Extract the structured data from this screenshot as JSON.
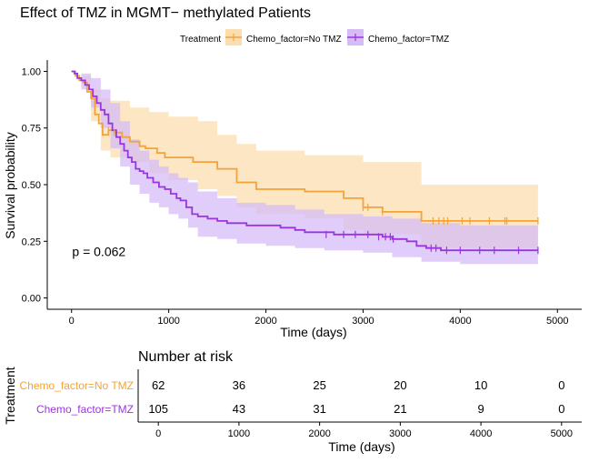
{
  "chart_data": [
    {
      "type": "line",
      "title": "Effect of TMZ in MGMT− methylated Patients",
      "xlabel": "Time (days)",
      "ylabel": "Survival probability",
      "xlim": [
        -250,
        5250
      ],
      "ylim": [
        -0.05,
        1.05
      ],
      "xticks": [
        0,
        1000,
        2000,
        3000,
        4000,
        5000
      ],
      "yticks": [
        0.0,
        0.25,
        0.5,
        0.75,
        1.0
      ],
      "ytick_labels": [
        "0.00",
        "0.25",
        "0.50",
        "0.75",
        "1.00"
      ],
      "grid": false,
      "legend": {
        "title": "Treatment",
        "placement": "top",
        "entries": [
          "Chemo_factor=No TMZ",
          "Chemo_factor=TMZ"
        ]
      },
      "annotation": "p = 0.062",
      "annotation_at": [
        100,
        0.2
      ],
      "series": [
        {
          "name": "Chemo_factor=No TMZ",
          "color": "#F2A33A",
          "band_color": "#FBDDB0",
          "steps": [
            [
              0,
              1.0
            ],
            [
              40,
              0.98
            ],
            [
              80,
              0.96
            ],
            [
              120,
              0.95
            ],
            [
              160,
              0.91
            ],
            [
              200,
              0.88
            ],
            [
              240,
              0.81
            ],
            [
              280,
              0.77
            ],
            [
              320,
              0.72
            ],
            [
              380,
              0.74
            ],
            [
              440,
              0.73
            ],
            [
              520,
              0.71
            ],
            [
              600,
              0.69
            ],
            [
              700,
              0.67
            ],
            [
              760,
              0.66
            ],
            [
              880,
              0.64
            ],
            [
              960,
              0.62
            ],
            [
              1100,
              0.62
            ],
            [
              1250,
              0.6
            ],
            [
              1500,
              0.57
            ],
            [
              1700,
              0.51
            ],
            [
              1900,
              0.48
            ],
            [
              2400,
              0.47
            ],
            [
              2800,
              0.44
            ],
            [
              3000,
              0.4
            ],
            [
              3050,
              0.4
            ],
            [
              3200,
              0.38
            ],
            [
              3600,
              0.34
            ],
            [
              4800,
              0.34
            ]
          ],
          "upper": [
            [
              0,
              1.0
            ],
            [
              100,
              0.98
            ],
            [
              200,
              0.92
            ],
            [
              300,
              0.88
            ],
            [
              400,
              0.87
            ],
            [
              600,
              0.84
            ],
            [
              800,
              0.82
            ],
            [
              1000,
              0.8
            ],
            [
              1300,
              0.78
            ],
            [
              1500,
              0.72
            ],
            [
              1700,
              0.68
            ],
            [
              1900,
              0.65
            ],
            [
              2400,
              0.63
            ],
            [
              3000,
              0.6
            ],
            [
              3600,
              0.5
            ],
            [
              4800,
              0.5
            ]
          ],
          "lower": [
            [
              0,
              1.0
            ],
            [
              100,
              0.95
            ],
            [
              200,
              0.78
            ],
            [
              300,
              0.65
            ],
            [
              400,
              0.62
            ],
            [
              600,
              0.6
            ],
            [
              800,
              0.55
            ],
            [
              1000,
              0.52
            ],
            [
              1300,
              0.48
            ],
            [
              1500,
              0.45
            ],
            [
              1700,
              0.4
            ],
            [
              1900,
              0.37
            ],
            [
              2400,
              0.35
            ],
            [
              2800,
              0.3
            ],
            [
              3000,
              0.28
            ],
            [
              3600,
              0.22
            ],
            [
              4800,
              0.22
            ]
          ],
          "censored": [
            [
              380,
              0.74
            ],
            [
              440,
              0.73
            ],
            [
              3000,
              0.4
            ],
            [
              3050,
              0.4
            ],
            [
              3200,
              0.38
            ],
            [
              3720,
              0.34
            ],
            [
              3780,
              0.34
            ],
            [
              3830,
              0.34
            ],
            [
              3870,
              0.34
            ],
            [
              4020,
              0.34
            ],
            [
              4100,
              0.34
            ],
            [
              4300,
              0.34
            ],
            [
              4460,
              0.34
            ],
            [
              4480,
              0.34
            ],
            [
              4800,
              0.34
            ]
          ]
        },
        {
          "name": "Chemo_factor=TMZ",
          "color": "#9B35E0",
          "band_color": "#D6BCF7",
          "steps": [
            [
              0,
              1.0
            ],
            [
              30,
              0.99
            ],
            [
              60,
              0.97
            ],
            [
              100,
              0.96
            ],
            [
              140,
              0.94
            ],
            [
              180,
              0.92
            ],
            [
              220,
              0.89
            ],
            [
              260,
              0.86
            ],
            [
              300,
              0.83
            ],
            [
              340,
              0.81
            ],
            [
              380,
              0.77
            ],
            [
              420,
              0.74
            ],
            [
              460,
              0.71
            ],
            [
              500,
              0.68
            ],
            [
              540,
              0.65
            ],
            [
              580,
              0.62
            ],
            [
              620,
              0.6
            ],
            [
              660,
              0.57
            ],
            [
              700,
              0.56
            ],
            [
              740,
              0.55
            ],
            [
              780,
              0.53
            ],
            [
              840,
              0.51
            ],
            [
              900,
              0.49
            ],
            [
              960,
              0.48
            ],
            [
              1020,
              0.46
            ],
            [
              1080,
              0.44
            ],
            [
              1120,
              0.43
            ],
            [
              1180,
              0.4
            ],
            [
              1240,
              0.37
            ],
            [
              1300,
              0.36
            ],
            [
              1400,
              0.35
            ],
            [
              1500,
              0.34
            ],
            [
              1600,
              0.33
            ],
            [
              1800,
              0.32
            ],
            [
              2000,
              0.32
            ],
            [
              2150,
              0.31
            ],
            [
              2300,
              0.3
            ],
            [
              2400,
              0.29
            ],
            [
              2500,
              0.29
            ],
            [
              2700,
              0.28
            ],
            [
              3200,
              0.27
            ],
            [
              3300,
              0.26
            ],
            [
              3450,
              0.25
            ],
            [
              3550,
              0.23
            ],
            [
              3650,
              0.22
            ],
            [
              3800,
              0.21
            ],
            [
              4800,
              0.21
            ]
          ],
          "upper": [
            [
              0,
              1.0
            ],
            [
              100,
              0.99
            ],
            [
              200,
              0.97
            ],
            [
              300,
              0.92
            ],
            [
              400,
              0.86
            ],
            [
              500,
              0.78
            ],
            [
              600,
              0.7
            ],
            [
              700,
              0.65
            ],
            [
              800,
              0.61
            ],
            [
              900,
              0.58
            ],
            [
              1000,
              0.55
            ],
            [
              1100,
              0.53
            ],
            [
              1200,
              0.51
            ],
            [
              1300,
              0.47
            ],
            [
              1500,
              0.44
            ],
            [
              1700,
              0.42
            ],
            [
              2000,
              0.41
            ],
            [
              2300,
              0.39
            ],
            [
              2600,
              0.37
            ],
            [
              3000,
              0.36
            ],
            [
              3300,
              0.35
            ],
            [
              3600,
              0.33
            ],
            [
              4000,
              0.32
            ],
            [
              4800,
              0.32
            ]
          ],
          "lower": [
            [
              0,
              1.0
            ],
            [
              100,
              0.92
            ],
            [
              200,
              0.84
            ],
            [
              300,
              0.75
            ],
            [
              400,
              0.66
            ],
            [
              500,
              0.58
            ],
            [
              600,
              0.5
            ],
            [
              700,
              0.46
            ],
            [
              800,
              0.42
            ],
            [
              900,
              0.4
            ],
            [
              1000,
              0.37
            ],
            [
              1100,
              0.35
            ],
            [
              1200,
              0.31
            ],
            [
              1300,
              0.27
            ],
            [
              1500,
              0.26
            ],
            [
              1700,
              0.24
            ],
            [
              2000,
              0.23
            ],
            [
              2300,
              0.22
            ],
            [
              2600,
              0.21
            ],
            [
              3000,
              0.2
            ],
            [
              3300,
              0.18
            ],
            [
              3600,
              0.16
            ],
            [
              4000,
              0.15
            ],
            [
              4800,
              0.15
            ]
          ],
          "censored": [
            [
              2620,
              0.28
            ],
            [
              2800,
              0.28
            ],
            [
              2920,
              0.28
            ],
            [
              3050,
              0.28
            ],
            [
              3160,
              0.27
            ],
            [
              3230,
              0.27
            ],
            [
              3280,
              0.27
            ],
            [
              3310,
              0.26
            ],
            [
              3700,
              0.22
            ],
            [
              3750,
              0.22
            ],
            [
              3860,
              0.21
            ],
            [
              4000,
              0.21
            ],
            [
              4200,
              0.21
            ],
            [
              4350,
              0.21
            ],
            [
              4600,
              0.21
            ],
            [
              4800,
              0.21
            ]
          ]
        }
      ]
    },
    {
      "type": "table",
      "title": "Number at risk",
      "xlabel": "Time (days)",
      "ylabel": "Treatment",
      "xlim": [
        -250,
        5250
      ],
      "xticks": [
        0,
        1000,
        2000,
        3000,
        4000,
        5000
      ],
      "rows": [
        {
          "name": "Chemo_factor=No TMZ",
          "color": "#F2A33A",
          "values": [
            "62",
            "36",
            "25",
            "20",
            "10",
            "0"
          ]
        },
        {
          "name": "Chemo_factor=TMZ",
          "color": "#9B35E0",
          "values": [
            "105",
            "43",
            "31",
            "21",
            "9",
            "0"
          ]
        }
      ]
    }
  ]
}
